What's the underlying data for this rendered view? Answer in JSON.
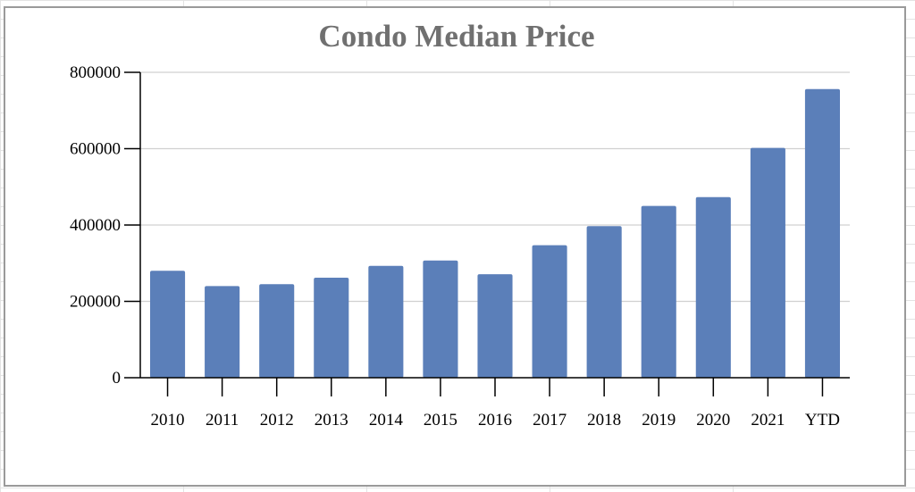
{
  "chart_data": {
    "type": "bar",
    "title": "Condo Median Price",
    "xlabel": "",
    "ylabel": "",
    "categories": [
      "2010",
      "2011",
      "2012",
      "2013",
      "2014",
      "2015",
      "2016",
      "2017",
      "2018",
      "2019",
      "2020",
      "2021",
      "YTD"
    ],
    "values": [
      280000,
      240000,
      245000,
      262000,
      293000,
      307000,
      271000,
      347000,
      397000,
      450000,
      473000,
      602000,
      756000
    ],
    "ylim": [
      0,
      800000
    ],
    "yticks": [
      "0",
      "200000",
      "400000",
      "600000",
      "800000"
    ],
    "grid": true,
    "legend": "none",
    "bar_color": "#5b7fb9",
    "grid_color": "#d0d0d0"
  }
}
